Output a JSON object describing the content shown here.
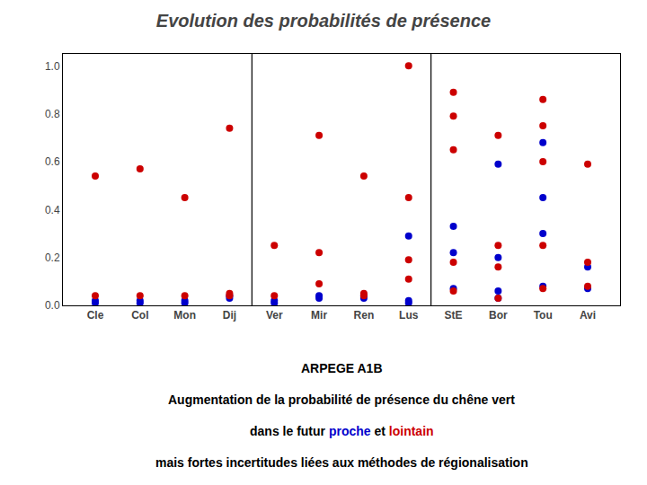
{
  "chart_data": {
    "type": "scatter",
    "title": "Evolution des probabilités de présence",
    "categories": [
      "Cle",
      "Col",
      "Mon",
      "Dij",
      "Ver",
      "Mir",
      "Ren",
      "Lus",
      "StE",
      "Bor",
      "Tou",
      "Avi"
    ],
    "series": [
      {
        "color": "#0000cc",
        "values": [
          [
            0.01,
            0.02
          ],
          [
            0.01,
            0.02
          ],
          [
            0.01,
            0.02
          ],
          [
            0.03,
            0.04
          ],
          [
            0.01,
            0.02
          ],
          [
            0.03,
            0.04
          ],
          [
            0.03,
            0.04
          ],
          [
            0.01,
            0.02,
            0.29
          ],
          [
            0.07,
            0.22,
            0.33
          ],
          [
            0.03,
            0.06,
            0.2,
            0.59
          ],
          [
            0.08,
            0.3,
            0.45,
            0.68
          ],
          [
            0.07,
            0.16
          ]
        ]
      },
      {
        "color": "#cc0000",
        "values": [
          [
            0.04,
            0.54
          ],
          [
            0.04,
            0.57
          ],
          [
            0.04,
            0.45
          ],
          [
            0.04,
            0.05,
            0.74
          ],
          [
            0.04,
            0.25
          ],
          [
            0.09,
            0.22,
            0.71
          ],
          [
            0.04,
            0.05,
            0.54
          ],
          [
            0.11,
            0.19,
            0.45,
            1.0
          ],
          [
            0.06,
            0.18,
            0.65,
            0.79,
            0.89
          ],
          [
            0.03,
            0.16,
            0.25,
            0.71
          ],
          [
            0.07,
            0.25,
            0.6,
            0.75,
            0.86
          ],
          [
            0.08,
            0.18,
            0.59
          ]
        ]
      }
    ],
    "ylim": [
      0,
      1.05
    ],
    "yticks": [
      {
        "value": 0,
        "label": "0.0"
      },
      0.2,
      0.4,
      0.6,
      0.8,
      {
        "value": 1,
        "label": "1.0"
      }
    ],
    "grid": false,
    "annotations": [
      [
        {
          "text": "ARPEGE A1B",
          "color": "#000000"
        }
      ],
      [
        {
          "text": "Augmentation de la probabilité de présence du chêne vert",
          "color": "#000000"
        }
      ],
      [
        {
          "text": "dans le futur ",
          "color": "#000000"
        },
        {
          "text": "proche",
          "color": "#0000cc"
        },
        {
          "text": " et ",
          "color": "#000000"
        },
        {
          "text": "lointain",
          "color": "#cc0000"
        }
      ],
      [
        {
          "text": "mais fortes incertitudes liées aux ",
          "color": "#000000"
        },
        {
          "text": "méthodes de régionalisation",
          "color": "#000000"
        }
      ]
    ]
  }
}
